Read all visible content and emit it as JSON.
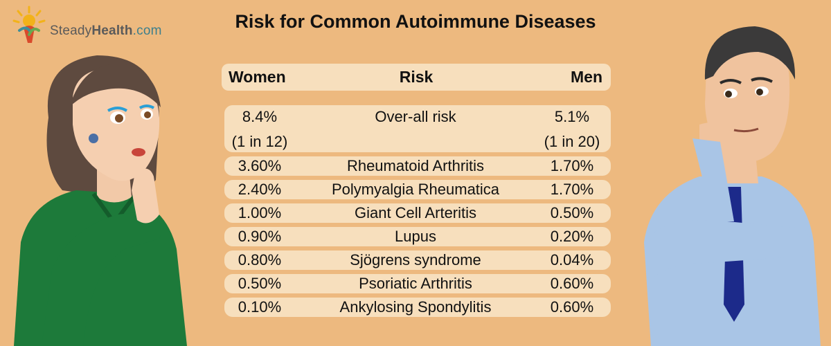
{
  "brand": {
    "name_part1": "Steady",
    "name_part2": "Health",
    "name_part3": ".com"
  },
  "title": "Risk for Common Autoimmune Diseases",
  "header": {
    "women": "Women",
    "risk": "Risk",
    "men": "Men"
  },
  "overall": {
    "women_pct": "8.4%",
    "women_ratio": "(1 in 12)",
    "label": "Over-all risk",
    "men_pct": "5.1%",
    "men_ratio": "(1 in 20)"
  },
  "rows": [
    {
      "women": "3.60%",
      "disease": "Rheumatoid Arthritis",
      "men": "1.70%"
    },
    {
      "women": "2.40%",
      "disease": "Polymyalgia Rheumatica",
      "men": "1.70%"
    },
    {
      "women": "1.00%",
      "disease": "Giant Cell Arteritis",
      "men": "0.50%"
    },
    {
      "women": "0.90%",
      "disease": "Lupus",
      "men": "0.20%"
    },
    {
      "women": "0.80%",
      "disease": "Sjögrens syndrome",
      "men": "0.04%"
    },
    {
      "women": "0.50%",
      "disease": "Psoriatic Arthritis",
      "men": "0.60%"
    },
    {
      "women": "0.10%",
      "disease": "Ankylosing Spondylitis",
      "men": "0.60%"
    }
  ],
  "colors": {
    "background": "#edb97f",
    "pill": "#f7dfbd",
    "woman_sweater": "#1d7a3a",
    "man_shirt": "#a9c5e6",
    "tie": "#1c2a8a"
  }
}
